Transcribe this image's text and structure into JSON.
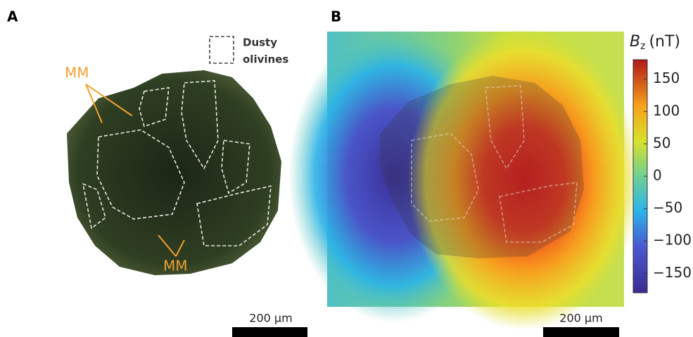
{
  "panel_a": {
    "label": "A",
    "legend": {
      "line1": "Dusty",
      "line2": "olivines"
    },
    "annotations": [
      "MM",
      "MM"
    ],
    "scale_bar": "200 µm"
  },
  "panel_b": {
    "label": "B",
    "scale_bar": "200 µm",
    "colorbar": {
      "symbol": "B",
      "subscript": "z",
      "unit": "(nT)",
      "lim": [
        -180,
        180
      ],
      "ticks": [
        150,
        100,
        50,
        0,
        {
          "value": -50,
          "label": "−50"
        },
        {
          "value": -100,
          "label": "−100"
        },
        {
          "value": -150,
          "label": "−150"
        }
      ]
    }
  }
}
